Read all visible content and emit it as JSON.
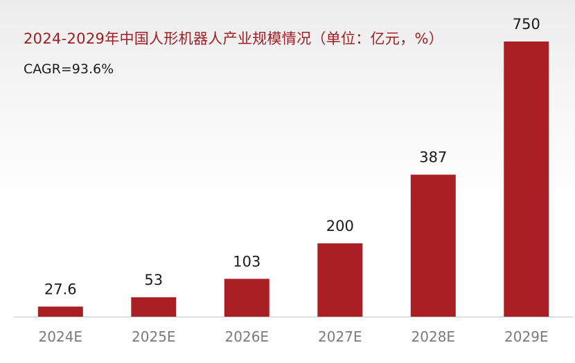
{
  "chart_data": {
    "type": "bar",
    "title": "2024-2029年中国人形机器人产业规模情况（单位：亿元，%）",
    "annotation": "CAGR=93.6%",
    "categories": [
      "2024E",
      "2025E",
      "2026E",
      "2027E",
      "2028E",
      "2029E"
    ],
    "values": [
      27.6,
      53,
      103,
      200,
      387,
      750
    ],
    "value_labels": [
      "27.6",
      "53",
      "103",
      "200",
      "387",
      "750"
    ],
    "xlabel": "",
    "ylabel": "",
    "ylim": [
      0,
      750
    ],
    "grid": false,
    "legend": "none",
    "colors": {
      "bar": "#a91f23",
      "title": "#a01d22",
      "axis": "#c8c8c8",
      "tick_label": "#7a7a7a",
      "value_label": "#1a1a1a"
    }
  }
}
